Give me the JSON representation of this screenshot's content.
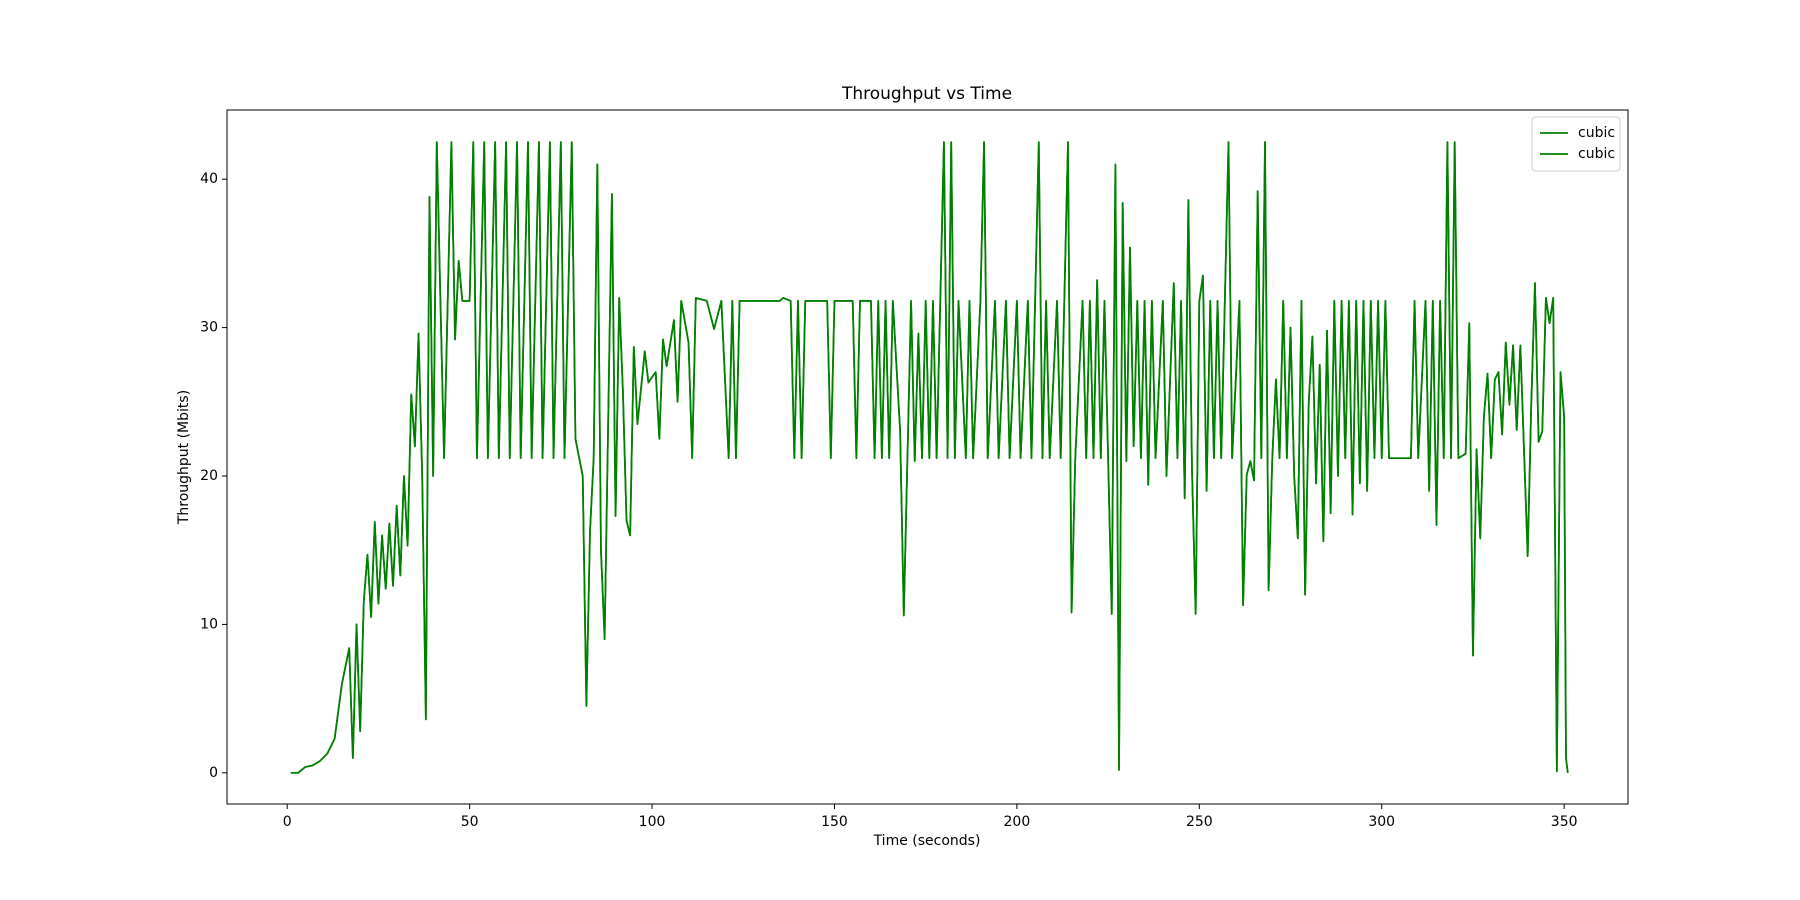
{
  "chart_data": {
    "type": "line",
    "title": "Throughput vs Time",
    "x_label": "Time (seconds)",
    "y_label": "Throughput (Mbits)",
    "xlim": [
      -16.5,
      367.5
    ],
    "ylim": [
      -2.1,
      44.66
    ],
    "xticks": [
      0,
      50,
      100,
      150,
      200,
      250,
      300,
      350
    ],
    "yticks": [
      0,
      10,
      20,
      30,
      40
    ],
    "legend": "upper right",
    "x": [
      1,
      3,
      5,
      7,
      9,
      11,
      13,
      15,
      17,
      18,
      19,
      20,
      21,
      22,
      23,
      24,
      25,
      26,
      27,
      28,
      29,
      30,
      31,
      32,
      33,
      34,
      35,
      36,
      37,
      38,
      39,
      40,
      41,
      42,
      43,
      44,
      45,
      46,
      47,
      48,
      50,
      51,
      52,
      54,
      55,
      57,
      58,
      60,
      61,
      63,
      64,
      66,
      67,
      69,
      70,
      72,
      73,
      75,
      76,
      78,
      79,
      81,
      82,
      83,
      84,
      85,
      86,
      87,
      88,
      89,
      90,
      91,
      92,
      93,
      94,
      95,
      96,
      98,
      99,
      101,
      102,
      103,
      104,
      106,
      107,
      108,
      110,
      111,
      112,
      115,
      117,
      119,
      121,
      122,
      123,
      124,
      135,
      136,
      138,
      139,
      140,
      141,
      142,
      148,
      149,
      150,
      155,
      156,
      157,
      160,
      161,
      162,
      163,
      164,
      165,
      166,
      168,
      169,
      170,
      171,
      172,
      173,
      174,
      175,
      176,
      177,
      178,
      179,
      180,
      181,
      182,
      183,
      184,
      186,
      187,
      188,
      190,
      191,
      192,
      194,
      195,
      197,
      198,
      200,
      201,
      203,
      204,
      206,
      207,
      208,
      209,
      211,
      212,
      214,
      215,
      216,
      218,
      219,
      220,
      221,
      222,
      223,
      224,
      225,
      226,
      227,
      228,
      229,
      230,
      231,
      232,
      233,
      234,
      235,
      236,
      237,
      238,
      240,
      241,
      243,
      244,
      245,
      246,
      247,
      248,
      249,
      250,
      251,
      252,
      253,
      254,
      255,
      256,
      258,
      259,
      261,
      262,
      263,
      264,
      265,
      266,
      267,
      268,
      269,
      270,
      271,
      272,
      273,
      274,
      275,
      276,
      277,
      278,
      279,
      280,
      281,
      282,
      283,
      284,
      285,
      286,
      287,
      288,
      289,
      290,
      291,
      292,
      293,
      294,
      295,
      296,
      297,
      298,
      299,
      300,
      301,
      302,
      308,
      309,
      310,
      312,
      313,
      314,
      315,
      316,
      317,
      318,
      319,
      320,
      321,
      323,
      324,
      325,
      326,
      327,
      328,
      329,
      330,
      331,
      332,
      333,
      334,
      335,
      336,
      337,
      338,
      340,
      341,
      342,
      343,
      344,
      345,
      346,
      347,
      348,
      349,
      350,
      350.5,
      351
    ],
    "series": [
      {
        "name": "cubic",
        "color": "#008000",
        "values": [
          0,
          0,
          0.4,
          0.5,
          0.8,
          1.3,
          2.3,
          6,
          8.4,
          1,
          10,
          2.8,
          11.6,
          14.7,
          10.5,
          16.9,
          11.4,
          16,
          12.4,
          16.8,
          12.6,
          18,
          13.3,
          20,
          15.3,
          25.5,
          22,
          29.6,
          20,
          3.6,
          38.8,
          20,
          42.5,
          31.8,
          21.2,
          31.8,
          42.5,
          29.2,
          34.5,
          31.8,
          31.8,
          42.5,
          21.2,
          42.5,
          21.2,
          42.5,
          21.2,
          42.5,
          21.2,
          42.5,
          21.2,
          42.5,
          21.2,
          42.5,
          21.2,
          42.5,
          21.2,
          42.5,
          21.2,
          42.5,
          22.5,
          20,
          4.5,
          16.3,
          21.2,
          41,
          15,
          9,
          24,
          39,
          17.3,
          32,
          25.8,
          17,
          16,
          28.7,
          23.5,
          28.4,
          26.3,
          27,
          22.5,
          29.2,
          27.4,
          30.5,
          25,
          31.8,
          29,
          21.2,
          32,
          31.8,
          29.9,
          31.8,
          21.2,
          31.8,
          21.2,
          31.8,
          31.8,
          32,
          31.8,
          21.2,
          31.8,
          21.2,
          31.8,
          31.8,
          21.2,
          31.8,
          31.8,
          21.2,
          31.8,
          31.8,
          21.2,
          31.8,
          21.2,
          31.8,
          21.2,
          31.8,
          23,
          10.6,
          21.2,
          31.8,
          21,
          29.6,
          21.2,
          31.8,
          21.2,
          31.8,
          21.2,
          31.8,
          42.5,
          21.2,
          42.5,
          21.2,
          31.8,
          21.2,
          31.8,
          21.2,
          31.8,
          42.5,
          21.2,
          31.8,
          21.2,
          31.8,
          21.2,
          31.8,
          21.2,
          31.8,
          21.2,
          42.5,
          21.2,
          31.8,
          21.2,
          31.8,
          21.2,
          42.5,
          10.8,
          21.2,
          31.8,
          21.2,
          31.8,
          21.2,
          33.2,
          21.2,
          31.8,
          21.2,
          10.7,
          41,
          0.2,
          38.4,
          21,
          35.4,
          22,
          31.8,
          21.2,
          31.8,
          19.4,
          31.8,
          21.2,
          31.8,
          20,
          33,
          21.2,
          31.8,
          18.5,
          38.6,
          20.4,
          10.7,
          31.8,
          33.5,
          19,
          31.8,
          21.2,
          31.8,
          21.2,
          42.5,
          21.2,
          31.8,
          11.3,
          20.1,
          21,
          19.7,
          39.2,
          21.2,
          42.5,
          12.3,
          21.2,
          26.5,
          21.2,
          31.8,
          21.2,
          30,
          20,
          15.8,
          31.8,
          12,
          25,
          29.4,
          19.5,
          27.5,
          15.6,
          29.8,
          17.5,
          31.8,
          20,
          31.8,
          21.2,
          31.8,
          17.4,
          31.8,
          19.5,
          31.8,
          19,
          31.8,
          21.2,
          31.8,
          21.2,
          31.8,
          21.2,
          21.2,
          31.8,
          21.2,
          31.8,
          19,
          31.8,
          16.7,
          31.8,
          21.2,
          42.5,
          21.2,
          42.5,
          21.2,
          21.5,
          30.3,
          7.9,
          21.8,
          15.8,
          24,
          26.9,
          21.2,
          26.5,
          27,
          22.8,
          29,
          24.8,
          28.8,
          23.1,
          28.8,
          14.6,
          25,
          33,
          22.3,
          23,
          32,
          30.3,
          32,
          0.1,
          27,
          24,
          1,
          0
        ]
      },
      {
        "name": "cubic",
        "color": "#008000",
        "values": [
          0,
          0,
          0.4,
          0.5,
          0.8,
          1.3,
          2.3,
          6,
          8.4,
          1,
          10,
          2.8,
          11.6,
          14.7,
          10.5,
          16.9,
          11.4,
          16,
          12.4,
          16.8,
          12.6,
          18,
          13.3,
          20,
          15.3,
          25.5,
          22,
          29.6,
          20,
          3.6,
          38.8,
          20,
          42.5,
          31.8,
          21.2,
          31.8,
          42.5,
          29.2,
          34.5,
          31.8,
          31.8,
          42.5,
          21.2,
          42.5,
          21.2,
          42.5,
          21.2,
          42.5,
          21.2,
          42.5,
          21.2,
          42.5,
          21.2,
          42.5,
          21.2,
          42.5,
          21.2,
          42.5,
          21.2,
          42.5,
          22.5,
          20,
          4.5,
          16.3,
          21.2,
          41,
          15,
          9,
          24,
          39,
          17.3,
          32,
          25.8,
          17,
          16,
          28.7,
          23.5,
          28.4,
          26.3,
          27,
          22.5,
          29.2,
          27.4,
          30.5,
          25,
          31.8,
          29,
          21.2,
          32,
          31.8,
          29.9,
          31.8,
          21.2,
          31.8,
          21.2,
          31.8,
          31.8,
          32,
          31.8,
          21.2,
          31.8,
          21.2,
          31.8,
          31.8,
          21.2,
          31.8,
          31.8,
          21.2,
          31.8,
          31.8,
          21.2,
          31.8,
          21.2,
          31.8,
          21.2,
          31.8,
          23,
          10.6,
          21.2,
          31.8,
          21,
          29.6,
          21.2,
          31.8,
          21.2,
          31.8,
          21.2,
          31.8,
          42.5,
          21.2,
          42.5,
          21.2,
          31.8,
          21.2,
          31.8,
          21.2,
          31.8,
          42.5,
          21.2,
          31.8,
          21.2,
          31.8,
          21.2,
          31.8,
          21.2,
          31.8,
          21.2,
          42.5,
          21.2,
          31.8,
          21.2,
          31.8,
          21.2,
          42.5,
          10.8,
          21.2,
          31.8,
          21.2,
          31.8,
          21.2,
          33.2,
          21.2,
          31.8,
          21.2,
          10.7,
          41,
          0.2,
          38.4,
          21,
          35.4,
          22,
          31.8,
          21.2,
          31.8,
          19.4,
          31.8,
          21.2,
          31.8,
          20,
          33,
          21.2,
          31.8,
          18.5,
          38.6,
          20.4,
          10.7,
          31.8,
          33.5,
          19,
          31.8,
          21.2,
          31.8,
          21.2,
          42.5,
          21.2,
          31.8,
          11.3,
          20.1,
          21,
          19.7,
          39.2,
          21.2,
          42.5,
          12.3,
          21.2,
          26.5,
          21.2,
          31.8,
          21.2,
          30,
          20,
          15.8,
          31.8,
          12,
          25,
          29.4,
          19.5,
          27.5,
          15.6,
          29.8,
          17.5,
          31.8,
          20,
          31.8,
          21.2,
          31.8,
          17.4,
          31.8,
          19.5,
          31.8,
          19,
          31.8,
          21.2,
          31.8,
          21.2,
          31.8,
          21.2,
          21.2,
          31.8,
          21.2,
          31.8,
          19,
          31.8,
          16.7,
          31.8,
          21.2,
          42.5,
          21.2,
          42.5,
          21.2,
          21.5,
          30.3,
          7.9,
          21.8,
          15.8,
          24,
          26.9,
          21.2,
          26.5,
          27,
          22.8,
          29,
          24.8,
          28.8,
          23.1,
          28.8,
          14.6,
          25,
          33,
          22.3,
          23,
          32,
          30.3,
          32,
          0.1,
          27,
          24,
          1,
          0
        ]
      }
    ]
  }
}
